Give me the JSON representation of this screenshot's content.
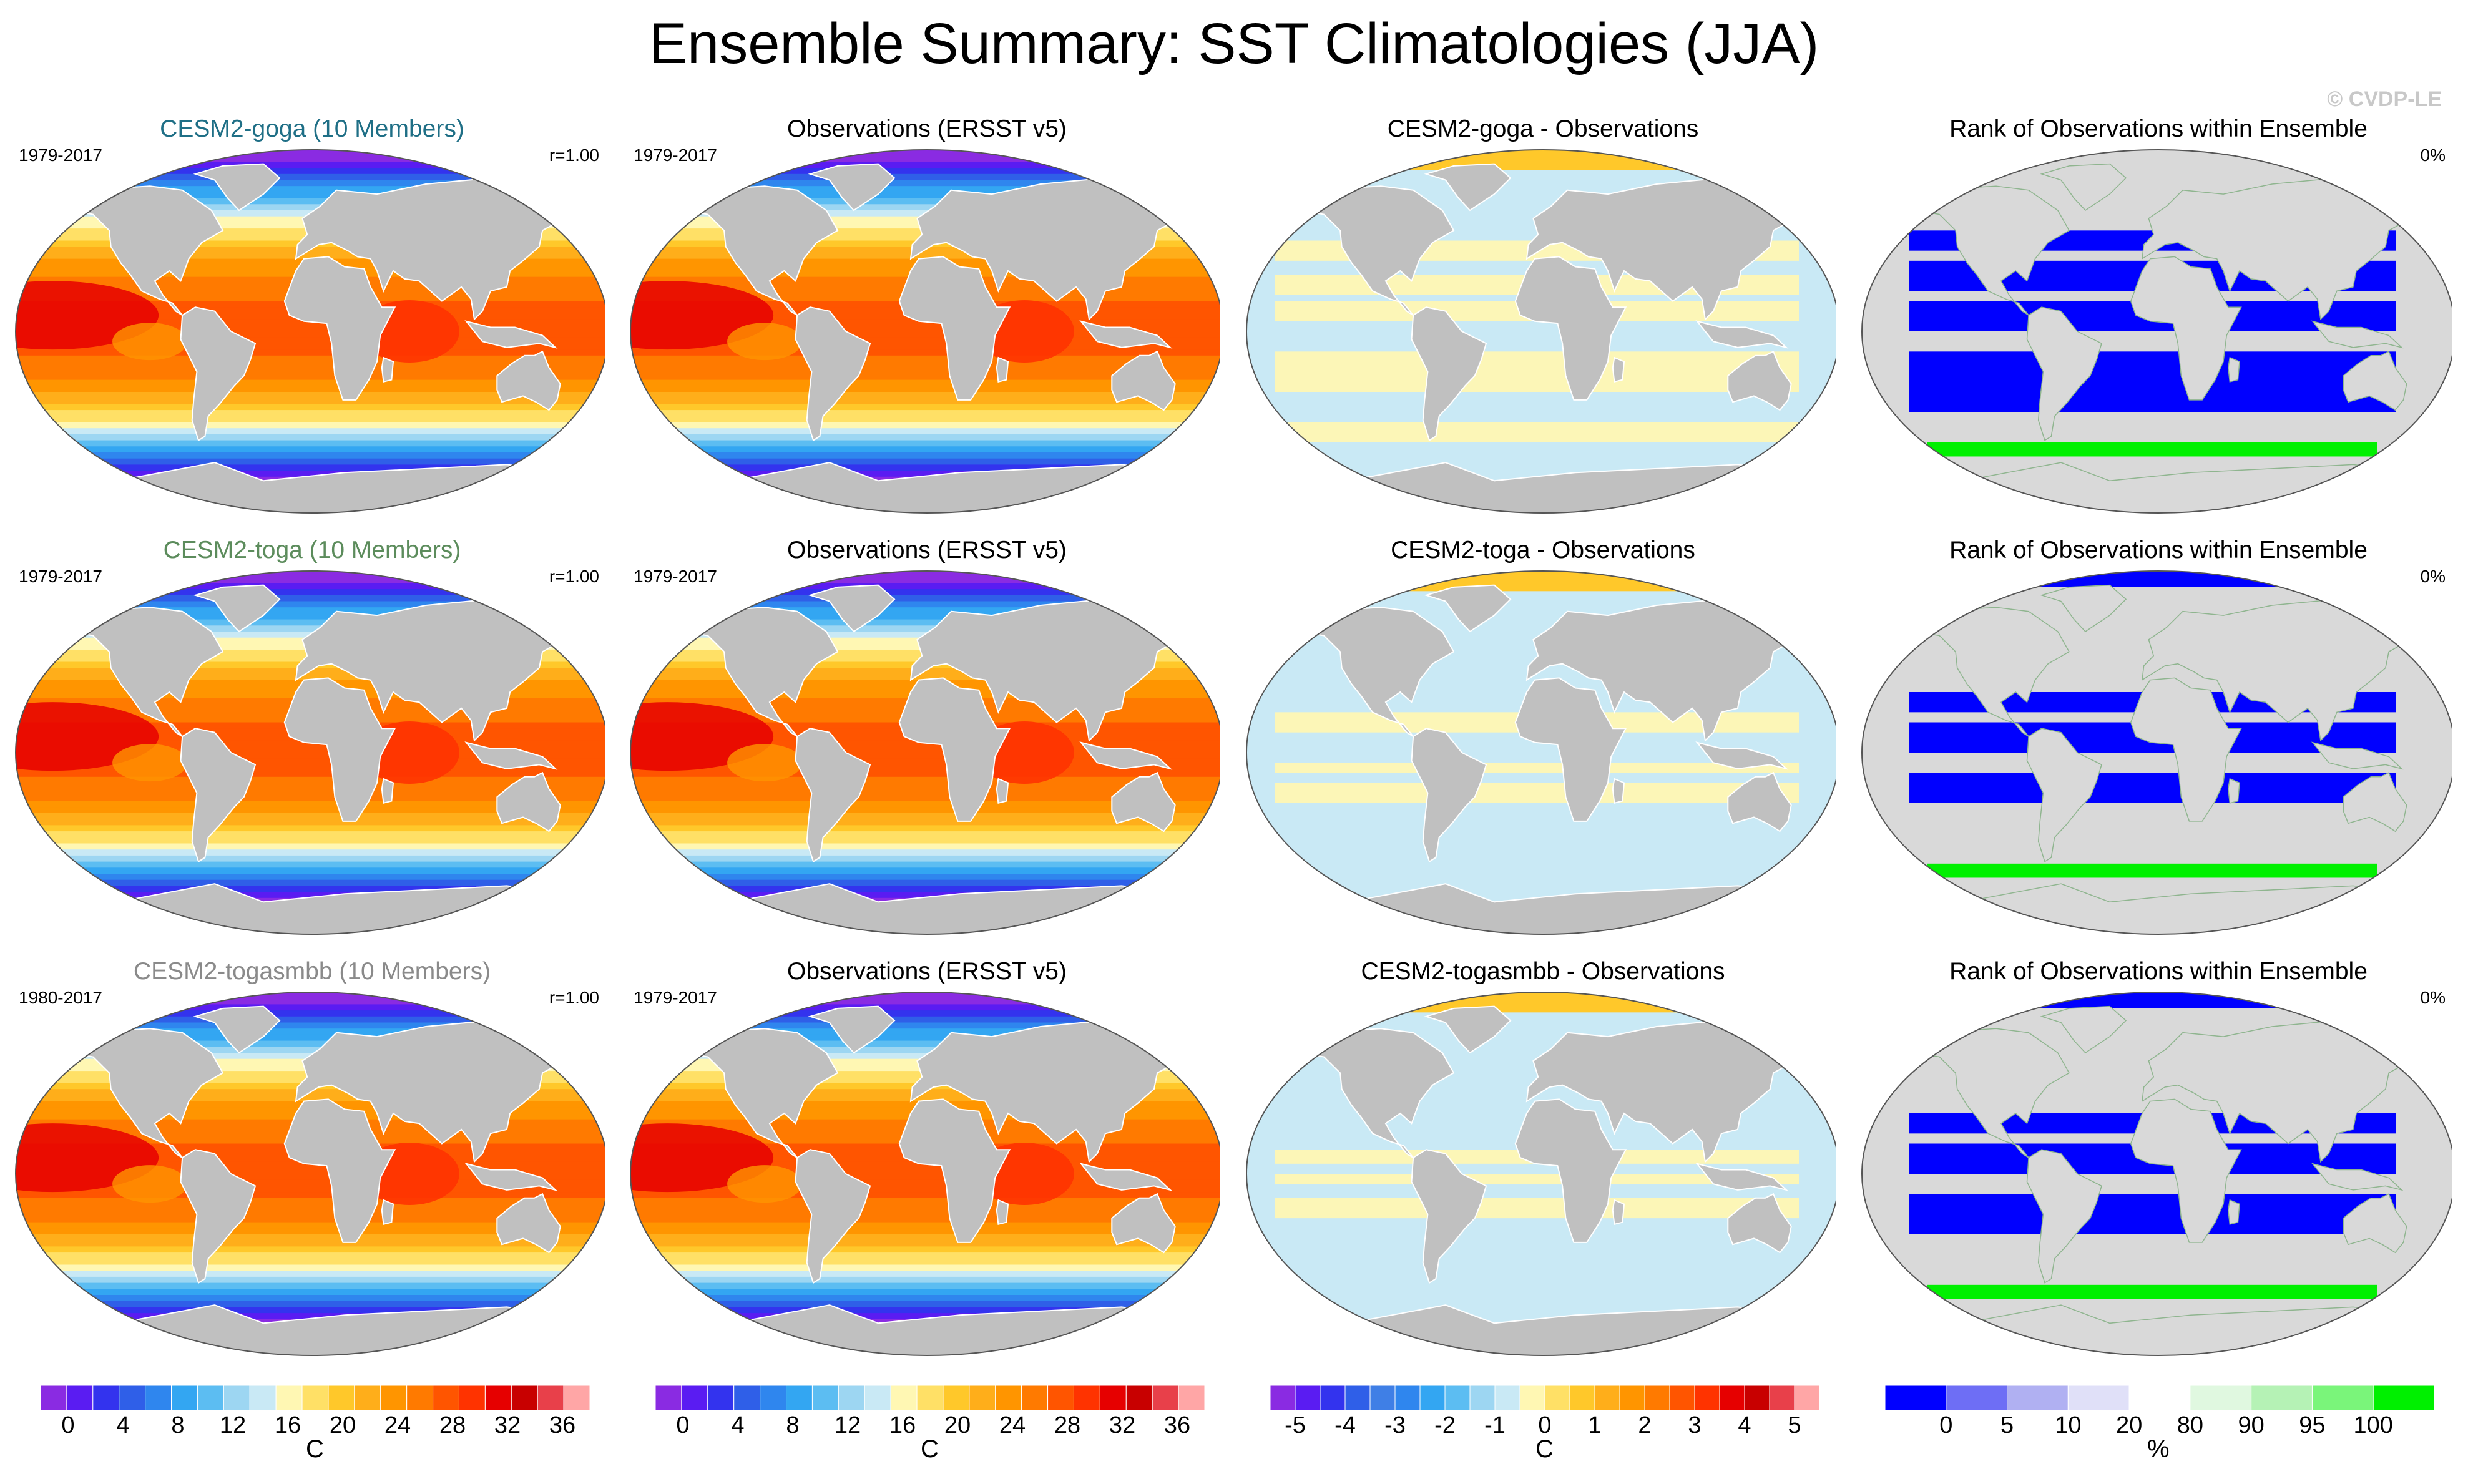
{
  "title": "Ensemble Summary: SST Climatologies (JJA)",
  "credit": "© CVDP-LE",
  "rows": [
    {
      "ensemble": {
        "title": "CESM2-goga (10 Members)",
        "title_color": "#1f6f86",
        "years": "1979-2017",
        "r": "r=1.00"
      },
      "obs": {
        "title": "Observations (ERSST v5)",
        "years": "1979-2017"
      },
      "diff": {
        "title": "CESM2-goga - Observations"
      },
      "rank": {
        "title": "Rank of Observations within Ensemble",
        "pct": "0%"
      }
    },
    {
      "ensemble": {
        "title": "CESM2-toga (10 Members)",
        "title_color": "#5c8c5c",
        "years": "1979-2017",
        "r": "r=1.00"
      },
      "obs": {
        "title": "Observations (ERSST v5)",
        "years": "1979-2017"
      },
      "diff": {
        "title": "CESM2-toga - Observations"
      },
      "rank": {
        "title": "Rank of Observations within Ensemble",
        "pct": "0%"
      }
    },
    {
      "ensemble": {
        "title": "CESM2-togasmbb (10 Members)",
        "title_color": "#8a8a8a",
        "years": "1980-2017",
        "r": "r=1.00"
      },
      "obs": {
        "title": "Observations (ERSST v5)",
        "years": "1979-2017"
      },
      "diff": {
        "title": "CESM2-togasmbb - Observations"
      },
      "rank": {
        "title": "Rank of Observations within Ensemble",
        "pct": "0%"
      }
    }
  ],
  "chart_data": {
    "type": "heatmap",
    "description_fields": "Global SST climatology maps (Robinson-like projection), 3 ensembles x 4 panel types",
    "colorbars": [
      {
        "name": "sst",
        "unit": "C",
        "tick_labels": [
          "0",
          "4",
          "8",
          "12",
          "16",
          "20",
          "24",
          "28",
          "32",
          "36"
        ],
        "tick_values": [
          0,
          4,
          8,
          12,
          16,
          20,
          24,
          28,
          32,
          36
        ],
        "levels": [
          -2,
          0,
          2,
          4,
          6,
          8,
          10,
          12,
          14,
          16,
          18,
          20,
          22,
          24,
          26,
          28,
          30,
          32,
          34,
          36,
          38
        ],
        "colors": [
          "#8a2be2",
          "#5a1cf2",
          "#3333ee",
          "#2f5fe8",
          "#2f86ee",
          "#33a6f2",
          "#5cbdf2",
          "#9dd6f2",
          "#c9e9f5",
          "#fff7b3",
          "#ffe066",
          "#ffc82a",
          "#ffae1a",
          "#ff9500",
          "#ff7a00",
          "#ff5500",
          "#ff3300",
          "#e60000",
          "#c80000",
          "#e8404a",
          "#ffa6a6"
        ]
      },
      {
        "name": "sst_diff",
        "unit": "C",
        "tick_labels": [
          "-5",
          "-4",
          "-3",
          "-2",
          "-1",
          "0",
          "1",
          "2",
          "3",
          "4",
          "5"
        ],
        "tick_values": [
          -5,
          -4,
          -3,
          -2,
          -1,
          0,
          1,
          2,
          3,
          4,
          5
        ],
        "levels": [
          -5.5,
          -5,
          -4.5,
          -4,
          -3.5,
          -3,
          -2.5,
          -2,
          -1.5,
          -1,
          -0.5,
          0,
          0.5,
          1,
          1.5,
          2,
          2.5,
          3,
          3.5,
          4,
          4.5,
          5,
          5.5
        ],
        "colors": [
          "#8a2be2",
          "#5a1cf2",
          "#3333ee",
          "#2f5fe8",
          "#3f7fe6",
          "#2f86ee",
          "#33a6f2",
          "#5cbdf2",
          "#9dd6f2",
          "#c9e9f5",
          "#fff7b3",
          "#ffe066",
          "#ffc82a",
          "#ffae1a",
          "#ff9500",
          "#ff7a00",
          "#ff5500",
          "#ff3300",
          "#e60000",
          "#c80000",
          "#e8404a",
          "#ffa6a6"
        ]
      },
      {
        "name": "rank",
        "unit": "%",
        "tick_labels": [
          "0",
          "5",
          "10",
          "20",
          "80",
          "90",
          "95",
          "100"
        ],
        "tick_values": [
          0,
          5,
          10,
          20,
          80,
          90,
          95,
          100
        ],
        "colors": [
          "#0000ff",
          "#6e6ef5",
          "#b0b0f2",
          "#e0e0f8",
          "#ffffff",
          "#e0f8e0",
          "#b5f2b5",
          "#7af57a",
          "#00f000"
        ]
      }
    ],
    "colors": {
      "land": "#c0c0c0",
      "rank_land": "#d9d9d9",
      "ocean_outline": "#555555",
      "diff_cool": "#c9e9f5",
      "diff_warm": "#fff7b3",
      "diff_warm_strong": "#ffc82a",
      "rank_low": "#0000ff",
      "rank_high": "#00f000"
    }
  }
}
